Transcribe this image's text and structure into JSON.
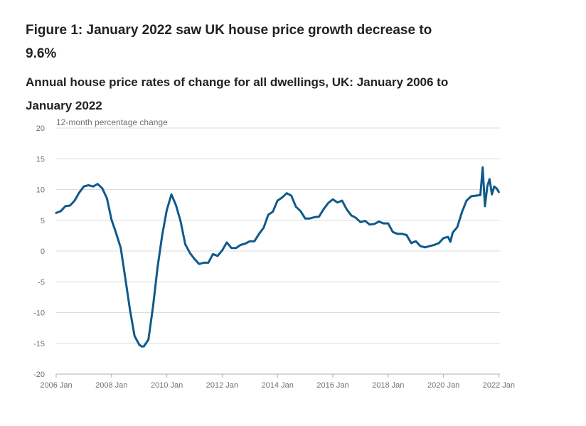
{
  "title": "Figure 1: January 2022 saw UK house price growth decrease to 9.6%",
  "subtitle": "Annual house price rates of change for all dwellings, UK: January 2006 to January 2022",
  "chart_data": {
    "type": "line",
    "ylabel": "12-month percentage change",
    "xlabel": "",
    "ylim": [
      -20,
      20
    ],
    "y_ticks": [
      20,
      15,
      10,
      5,
      0,
      -5,
      -10,
      -15,
      -20
    ],
    "x_tick_labels": [
      "2006 Jan",
      "2008 Jan",
      "2010 Jan",
      "2012 Jan",
      "2014 Jan",
      "2016 Jan",
      "2018 Jan",
      "2020 Jan",
      "2022 Jan"
    ],
    "grid": "horizontal",
    "line_color": "#0f5a8c",
    "series": [
      {
        "x": [
          "2006-01",
          "2006-03",
          "2006-05",
          "2006-07",
          "2006-09",
          "2006-11",
          "2007-01",
          "2007-03",
          "2007-05",
          "2007-07",
          "2007-09",
          "2007-11",
          "2008-01",
          "2008-03",
          "2008-05",
          "2008-07",
          "2008-09",
          "2008-11",
          "2009-01",
          "2009-02",
          "2009-03",
          "2009-05",
          "2009-07",
          "2009-09",
          "2009-11",
          "2010-01",
          "2010-03",
          "2010-05",
          "2010-07",
          "2010-09",
          "2010-11",
          "2011-01",
          "2011-03",
          "2011-05",
          "2011-07",
          "2011-09",
          "2011-11",
          "2012-01",
          "2012-03",
          "2012-05",
          "2012-07",
          "2012-09",
          "2012-11",
          "2013-01",
          "2013-03",
          "2013-05",
          "2013-07",
          "2013-09",
          "2013-11",
          "2014-01",
          "2014-03",
          "2014-05",
          "2014-07",
          "2014-09",
          "2014-11",
          "2015-01",
          "2015-03",
          "2015-05",
          "2015-07",
          "2015-09",
          "2015-11",
          "2016-01",
          "2016-03",
          "2016-05",
          "2016-07",
          "2016-09",
          "2016-11",
          "2017-01",
          "2017-03",
          "2017-05",
          "2017-07",
          "2017-09",
          "2017-11",
          "2018-01",
          "2018-03",
          "2018-05",
          "2018-07",
          "2018-09",
          "2018-11",
          "2019-01",
          "2019-03",
          "2019-05",
          "2019-07",
          "2019-09",
          "2019-11",
          "2020-01",
          "2020-03",
          "2020-04",
          "2020-05",
          "2020-07",
          "2020-09",
          "2020-11",
          "2021-01",
          "2021-03",
          "2021-05",
          "2021-06",
          "2021-07",
          "2021-08",
          "2021-09",
          "2021-10",
          "2021-11",
          "2021-12",
          "2022-01"
        ],
        "values": [
          6.2,
          6.5,
          7.3,
          7.4,
          8.2,
          9.5,
          10.5,
          10.7,
          10.5,
          10.9,
          10.2,
          8.6,
          5.1,
          2.9,
          0.5,
          -4.5,
          -9.5,
          -13.8,
          -15.2,
          -15.5,
          -15.5,
          -14.4,
          -9.0,
          -2.6,
          2.6,
          6.7,
          9.2,
          7.4,
          4.8,
          1.1,
          -0.3,
          -1.3,
          -2.1,
          -1.9,
          -1.9,
          -0.5,
          -0.8,
          0.1,
          1.4,
          0.5,
          0.5,
          1.0,
          1.2,
          1.6,
          1.6,
          2.8,
          3.8,
          5.9,
          6.4,
          8.2,
          8.7,
          9.4,
          9.0,
          7.2,
          6.5,
          5.3,
          5.3,
          5.5,
          5.6,
          6.8,
          7.8,
          8.4,
          7.9,
          8.2,
          6.8,
          5.8,
          5.4,
          4.7,
          4.9,
          4.3,
          4.4,
          4.8,
          4.5,
          4.5,
          3.1,
          2.8,
          2.8,
          2.6,
          1.3,
          1.6,
          0.8,
          0.6,
          0.8,
          1.0,
          1.3,
          2.1,
          2.3,
          1.5,
          3.0,
          3.9,
          6.3,
          8.2,
          8.9,
          9.0,
          9.1,
          13.6,
          7.3,
          10.5,
          11.7,
          9.2,
          10.5,
          10.2,
          9.6
        ]
      }
    ]
  }
}
